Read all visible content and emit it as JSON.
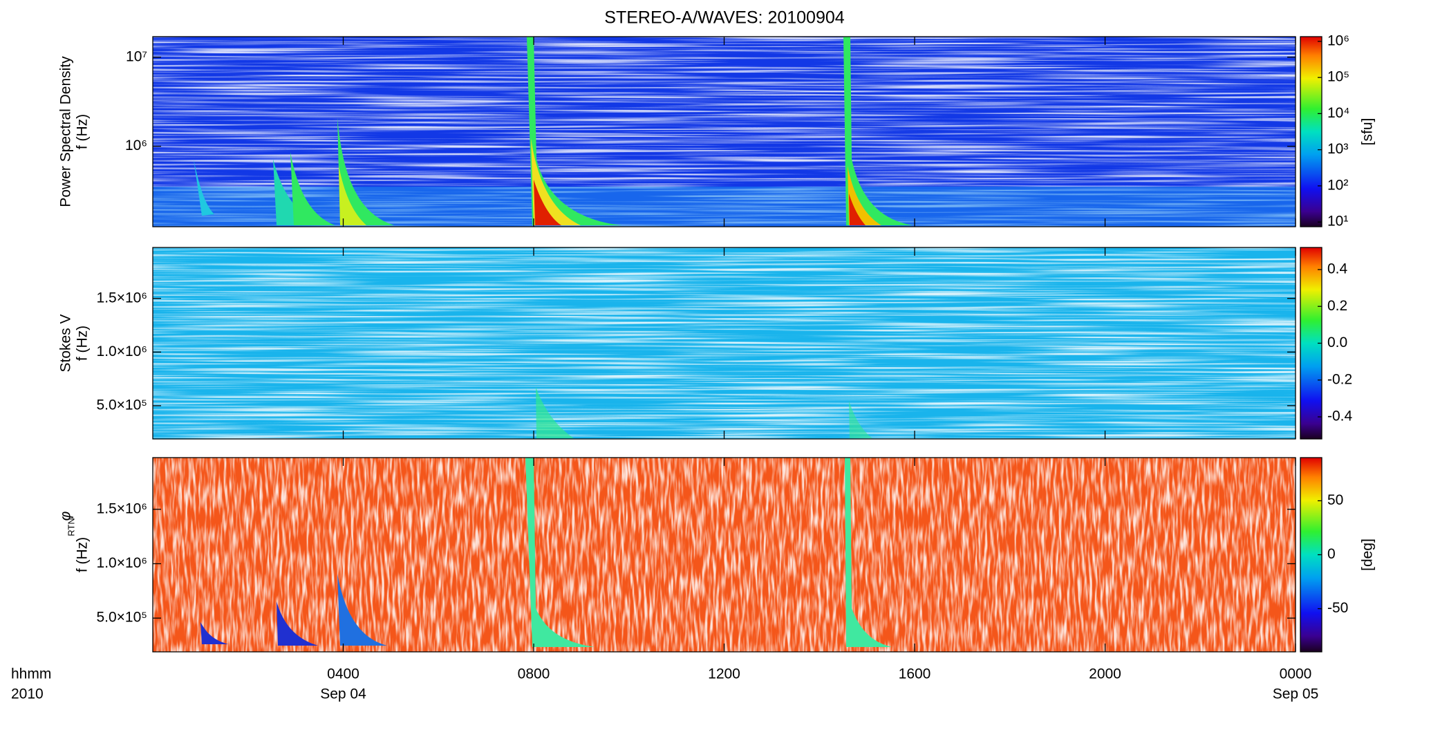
{
  "chart_data": [
    {
      "type": "spectrogram",
      "title": "STEREO-A/WAVES: 20100904",
      "ylabel": [
        "Power Spectral Density",
        "f (Hz)"
      ],
      "ylog": true,
      "ylim": [
        125000,
        17000000
      ],
      "yticks": [
        {
          "value": 1000000,
          "label": "10⁶"
        },
        {
          "value": 10000000,
          "label": "10⁷"
        }
      ],
      "colorbar": {
        "log": true,
        "clim": [
          7.4,
          1350000
        ],
        "label": "[sfu]",
        "ticks": [
          {
            "value": 10,
            "label": "10¹"
          },
          {
            "value": 100,
            "label": "10²"
          },
          {
            "value": 1000,
            "label": "10³"
          },
          {
            "value": 10000,
            "label": "10⁴"
          },
          {
            "value": 100000,
            "label": "10⁵"
          },
          {
            "value": 1000000,
            "label": "10⁶"
          }
        ]
      },
      "background": "#1238e6",
      "noise": "#4a9bff"
    },
    {
      "type": "spectrogram",
      "ylabel": [
        "Stokes V",
        "f (Hz)"
      ],
      "ylog": false,
      "ylim": [
        190000,
        1975000
      ],
      "yticks": [
        {
          "value": 500000,
          "label": "5.0×10⁵"
        },
        {
          "value": 1000000,
          "label": "1.0×10⁶"
        },
        {
          "value": 1500000,
          "label": "1.5×10⁶"
        }
      ],
      "colorbar": {
        "log": false,
        "clim": [
          -0.52,
          0.52
        ],
        "ticks": [
          -0.4,
          -0.2,
          {
            "value": 0,
            "label": "0.0"
          },
          0.2,
          0.4
        ]
      },
      "background": "#19b4ec",
      "noise": "#1f3ad8"
    },
    {
      "type": "spectrogram",
      "ylabel": [
        "φ",
        "f (Hz)"
      ],
      "ylabel_sub": "RTN",
      "ylog": false,
      "ylim": [
        190000,
        1975000
      ],
      "yticks": [
        {
          "value": 500000,
          "label": "5.0×10⁵"
        },
        {
          "value": 1000000,
          "label": "1.0×10⁶"
        },
        {
          "value": 1500000,
          "label": "1.5×10⁶"
        }
      ],
      "colorbar": {
        "log": false,
        "clim": [
          -90,
          90
        ],
        "label": "[deg]",
        "ticks": [
          -50,
          0,
          50
        ]
      },
      "background": "#f4561a",
      "noise": "#f0d21e",
      "xlim": [
        0,
        24
      ],
      "xticks": [
        {
          "value": 4,
          "label": "0400"
        },
        {
          "value": 8,
          "label": "0800"
        },
        {
          "value": 12,
          "label": "1200"
        },
        {
          "value": 16,
          "label": "1600"
        },
        {
          "value": 20,
          "label": "2000"
        },
        {
          "value": 24,
          "label": "0000"
        }
      ],
      "x_dates": [
        {
          "value": 4,
          "label": "Sep 04"
        },
        {
          "value": 24,
          "label": "Sep 05"
        }
      ],
      "x_label": [
        "hhmm",
        "2010"
      ]
    }
  ]
}
